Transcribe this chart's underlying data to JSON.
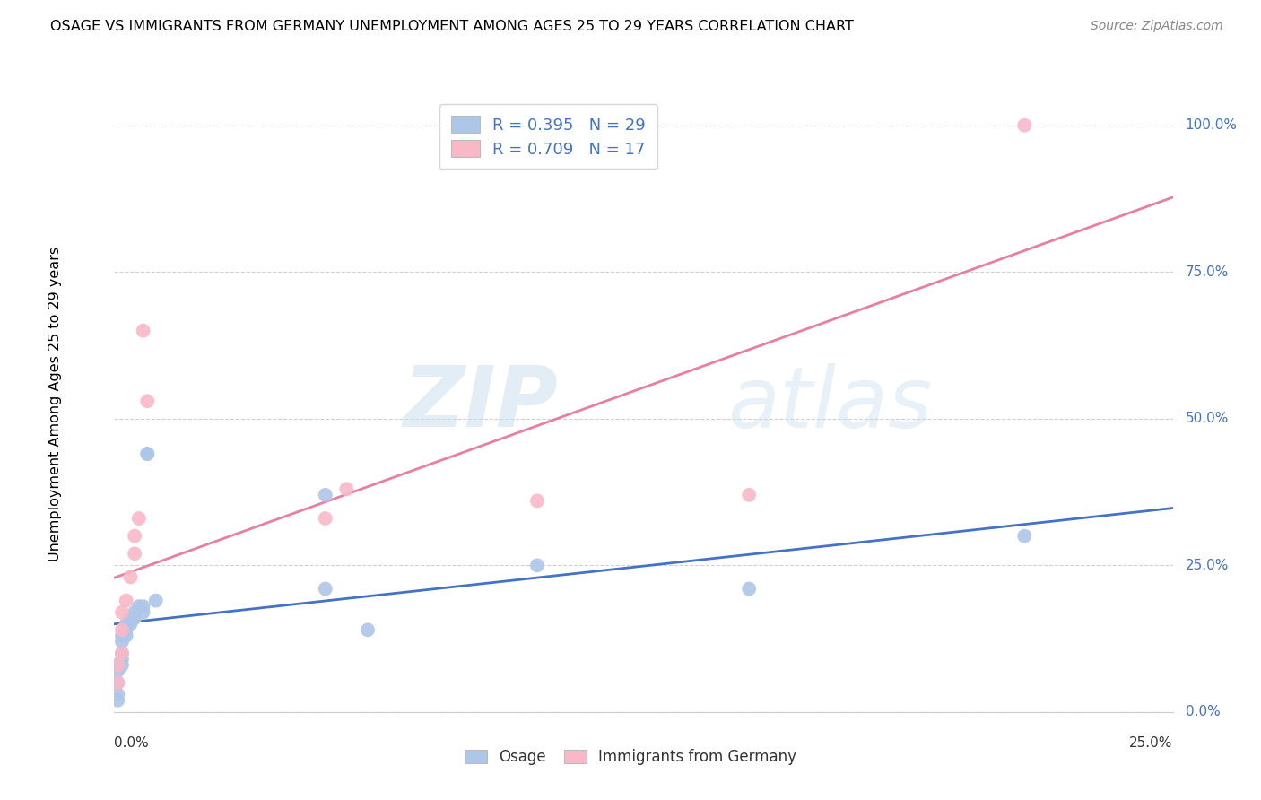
{
  "title": "OSAGE VS IMMIGRANTS FROM GERMANY UNEMPLOYMENT AMONG AGES 25 TO 29 YEARS CORRELATION CHART",
  "source": "Source: ZipAtlas.com",
  "ylabel": "Unemployment Among Ages 25 to 29 years",
  "watermark_zip": "ZIP",
  "watermark_atlas": "atlas",
  "osage_color": "#aec6e8",
  "germany_color": "#f9b8c8",
  "osage_line_color": "#4472c4",
  "germany_line_color": "#e87fa0",
  "background_color": "#ffffff",
  "grid_color": "#d0d0d0",
  "osage_x": [
    0.001,
    0.001,
    0.001,
    0.001,
    0.001,
    0.002,
    0.002,
    0.002,
    0.002,
    0.002,
    0.003,
    0.003,
    0.003,
    0.004,
    0.004,
    0.005,
    0.005,
    0.006,
    0.007,
    0.007,
    0.008,
    0.01,
    0.05,
    0.06,
    0.1,
    0.15,
    0.215,
    0.05,
    0.008
  ],
  "osage_y": [
    0.02,
    0.03,
    0.05,
    0.07,
    0.08,
    0.08,
    0.09,
    0.1,
    0.12,
    0.13,
    0.13,
    0.14,
    0.15,
    0.15,
    0.16,
    0.16,
    0.17,
    0.18,
    0.17,
    0.18,
    0.44,
    0.19,
    0.21,
    0.14,
    0.25,
    0.21,
    0.3,
    0.37,
    0.44
  ],
  "germany_x": [
    0.001,
    0.001,
    0.002,
    0.002,
    0.002,
    0.003,
    0.004,
    0.005,
    0.005,
    0.006,
    0.007,
    0.008,
    0.05,
    0.055,
    0.1,
    0.15,
    0.215
  ],
  "germany_y": [
    0.05,
    0.08,
    0.1,
    0.14,
    0.17,
    0.19,
    0.23,
    0.27,
    0.3,
    0.33,
    0.65,
    0.53,
    0.33,
    0.38,
    0.36,
    0.37,
    1.0
  ],
  "xlim": [
    0.0,
    0.25
  ],
  "ylim": [
    0.0,
    1.05
  ],
  "yticks": [
    0.0,
    0.25,
    0.5,
    0.75,
    1.0
  ],
  "ytick_labels": [
    "0.0%",
    "25.0%",
    "50.0%",
    "75.0%",
    "100.0%"
  ],
  "xtick_labels_show": [
    "0.0%",
    "25.0%"
  ],
  "legend_r_osage": "R = 0.395",
  "legend_n_osage": "N = 29",
  "legend_r_germany": "R = 0.709",
  "legend_n_germany": "N = 17"
}
